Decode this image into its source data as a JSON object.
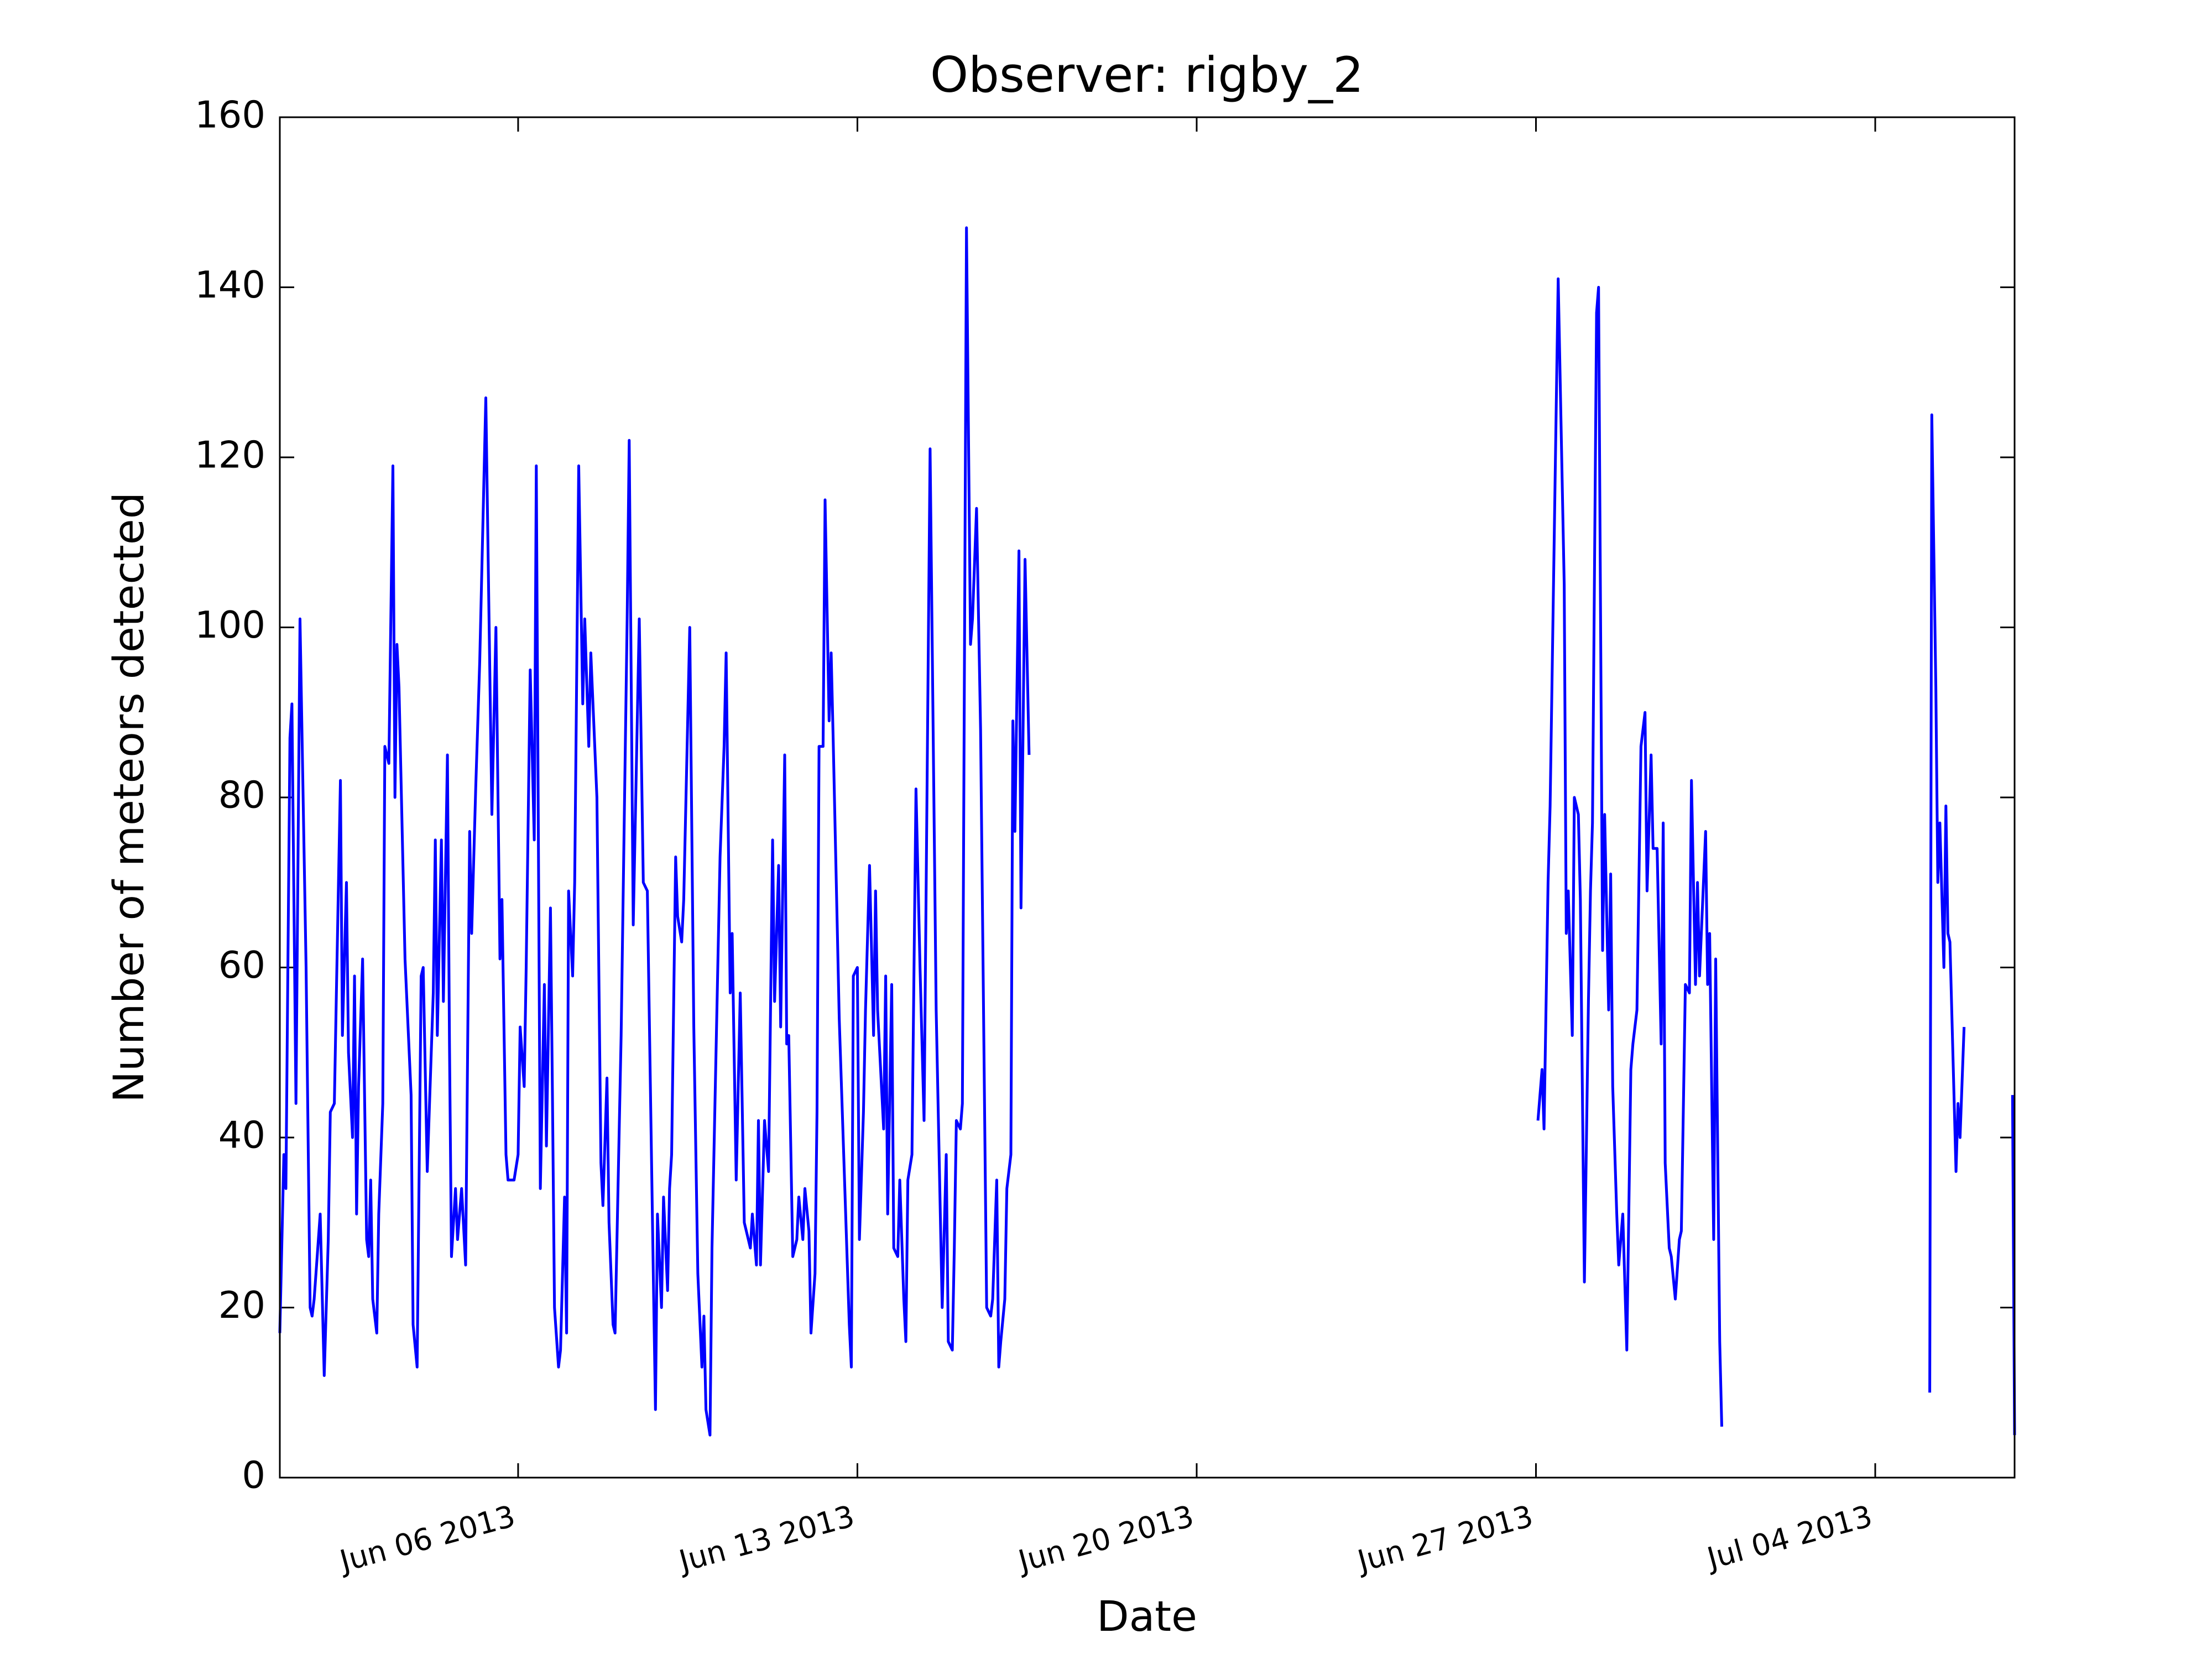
{
  "chart_data": {
    "type": "line",
    "title": "Observer: rigby_2",
    "x_label": "Date",
    "y_label": "Number of meteors detected",
    "color": "#0000ff",
    "xlim": [
      "2013-06-01T02:00",
      "2013-07-06T21:00"
    ],
    "xticks": [
      {
        "value": "2013-06-06",
        "label": "Jun 06 2013"
      },
      {
        "value": "2013-06-13",
        "label": "Jun 13 2013"
      },
      {
        "value": "2013-06-20",
        "label": "Jun 20 2013"
      },
      {
        "value": "2013-06-27",
        "label": "Jun 27 2013"
      },
      {
        "value": "2013-07-04",
        "label": "Jul 04 2013"
      }
    ],
    "ylim": [
      0,
      160
    ],
    "yticks": [
      0,
      20,
      40,
      60,
      80,
      100,
      120,
      140,
      160
    ],
    "x": [
      "2013-06-01T02:00",
      "2013-06-01T04:00",
      "2013-06-01T05:00",
      "2013-06-01T07:00",
      "2013-06-01T08:00",
      "2013-06-01T10:00",
      "2013-06-01T12:00",
      "2013-06-01T15:00",
      "2013-06-01T17:00",
      "2013-06-01T18:00",
      "2013-06-01T19:00",
      "2013-06-01T22:00",
      "2013-06-02T00:00",
      "2013-06-02T02:00",
      "2013-06-02T03:00",
      "2013-06-02T05:00",
      "2013-06-02T06:00",
      "2013-06-02T08:00",
      "2013-06-02T09:00",
      "2013-06-02T11:00",
      "2013-06-02T12:00",
      "2013-06-02T14:00",
      "2013-06-02T15:00",
      "2013-06-02T16:00",
      "2013-06-02T17:00",
      "2013-06-02T19:00",
      "2013-06-02T21:00",
      "2013-06-02T22:00",
      "2013-06-02T23:00",
      "2013-06-03T00:00",
      "2013-06-03T02:00",
      "2013-06-03T03:00",
      "2013-06-03T05:00",
      "2013-06-03T06:00",
      "2013-06-03T08:00",
      "2013-06-03T10:00",
      "2013-06-03T11:00",
      "2013-06-03T12:00",
      "2013-06-03T13:00",
      "2013-06-03T16:00",
      "2013-06-03T19:00",
      "2013-06-03T20:00",
      "2013-06-03T22:00",
      "2013-06-04T00:00",
      "2013-06-04T01:00",
      "2013-06-04T03:00",
      "2013-06-04T04:00",
      "2013-06-04T06:00",
      "2013-06-04T07:00",
      "2013-06-04T08:00",
      "2013-06-04T10:00",
      "2013-06-04T11:00",
      "2013-06-04T13:00",
      "2013-06-04T14:00",
      "2013-06-04T15:00",
      "2013-06-04T17:00",
      "2013-06-04T18:00",
      "2013-06-04T20:00",
      "2013-06-04T22:00",
      "2013-06-05T00:00",
      "2013-06-05T01:00",
      "2013-06-05T03:00",
      "2013-06-05T05:00",
      "2013-06-05T08:00",
      "2013-06-05T11:00",
      "2013-06-05T13:00",
      "2013-06-05T15:00",
      "2013-06-05T16:00",
      "2013-06-05T18:00",
      "2013-06-05T19:00",
      "2013-06-05T22:00",
      "2013-06-06T00:00",
      "2013-06-06T01:00",
      "2013-06-06T03:00",
      "2013-06-06T04:00",
      "2013-06-06T06:00",
      "2013-06-06T08:00",
      "2013-06-06T09:00",
      "2013-06-06T11:00",
      "2013-06-06T13:00",
      "2013-06-06T14:00",
      "2013-06-06T16:00",
      "2013-06-06T17:00",
      "2013-06-06T18:00",
      "2013-06-06T20:00",
      "2013-06-06T21:00",
      "2013-06-06T23:00",
      "2013-06-07T00:00",
      "2013-06-07T01:00",
      "2013-06-07T03:00",
      "2013-06-07T04:00",
      "2013-06-07T06:00",
      "2013-06-07T08:00",
      "2013-06-07T09:00",
      "2013-06-07T11:00",
      "2013-06-07T12:00",
      "2013-06-07T15:00",
      "2013-06-07T17:00",
      "2013-06-07T18:00",
      "2013-06-07T20:00",
      "2013-06-07T21:00",
      "2013-06-07T23:00",
      "2013-06-08T00:00",
      "2013-06-08T03:00",
      "2013-06-08T06:00",
      "2013-06-08T07:00",
      "2013-06-08T09:00",
      "2013-06-08T12:00",
      "2013-06-08T14:00",
      "2013-06-08T16:00",
      "2013-06-08T19:00",
      "2013-06-08T20:00",
      "2013-06-08T21:00",
      "2013-06-08T23:00",
      "2013-06-09T00:00",
      "2013-06-09T02:00",
      "2013-06-09T03:00",
      "2013-06-09T04:00",
      "2013-06-09T06:00",
      "2013-06-09T07:00",
      "2013-06-09T09:00",
      "2013-06-09T10:00",
      "2013-06-09T13:00",
      "2013-06-09T15:00",
      "2013-06-09T17:00",
      "2013-06-09T19:00",
      "2013-06-09T20:00",
      "2013-06-09T21:00",
      "2013-06-09T23:00",
      "2013-06-10T00:00",
      "2013-06-10T02:00",
      "2013-06-10T04:00",
      "2013-06-10T06:00",
      "2013-06-10T07:00",
      "2013-06-10T09:00",
      "2013-06-10T10:00",
      "2013-06-10T12:00",
      "2013-06-10T14:00",
      "2013-06-10T16:00",
      "2013-06-10T17:00",
      "2013-06-10T19:00",
      "2013-06-10T20:00",
      "2013-06-10T22:00",
      "2013-06-10T23:00",
      "2013-06-11T00:00",
      "2013-06-11T02:00",
      "2013-06-11T04:00",
      "2013-06-11T06:00",
      "2013-06-11T07:00",
      "2013-06-11T09:00",
      "2013-06-11T10:00",
      "2013-06-11T12:00",
      "2013-06-11T13:00",
      "2013-06-11T14:00",
      "2013-06-11T16:00",
      "2013-06-11T18:00",
      "2013-06-11T19:00",
      "2013-06-11T21:00",
      "2013-06-11T22:00",
      "2013-06-12T00:00",
      "2013-06-12T01:00",
      "2013-06-12T03:00",
      "2013-06-12T04:00",
      "2013-06-12T05:00",
      "2013-06-12T07:00",
      "2013-06-12T08:00",
      "2013-06-12T10:00",
      "2013-06-12T11:00",
      "2013-06-12T12:00",
      "2013-06-12T15:00",
      "2013-06-12T20:00",
      "2013-06-12T21:00",
      "2013-06-12T22:00",
      "2013-06-13T00:00",
      "2013-06-13T01:00",
      "2013-06-13T03:00",
      "2013-06-13T04:00",
      "2013-06-13T06:00",
      "2013-06-13T08:00",
      "2013-06-13T09:00",
      "2013-06-13T10:00",
      "2013-06-13T13:00",
      "2013-06-13T14:00",
      "2013-06-13T15:00",
      "2013-06-13T17:00",
      "2013-06-13T18:00",
      "2013-06-13T20:00",
      "2013-06-13T21:00",
      "2013-06-13T23:00",
      "2013-06-14T00:00",
      "2013-06-14T01:00",
      "2013-06-14T03:00",
      "2013-06-14T05:00",
      "2013-06-14T07:00",
      "2013-06-14T09:00",
      "2013-06-14T12:00",
      "2013-06-14T15:00",
      "2013-06-14T18:00",
      "2013-06-14T20:00",
      "2013-06-14T21:00",
      "2013-06-14T23:00",
      "2013-06-15T00:00",
      "2013-06-15T01:00",
      "2013-06-15T03:00",
      "2013-06-15T04:00",
      "2013-06-15T06:00",
      "2013-06-15T08:00",
      "2013-06-15T09:00",
      "2013-06-15T11:00",
      "2013-06-15T13:00",
      "2013-06-15T16:00",
      "2013-06-15T18:00",
      "2013-06-15T19:00",
      "2013-06-15T21:00",
      "2013-06-15T22:00",
      "2013-06-15T23:00",
      "2013-06-16T01:00",
      "2013-06-16T02:00",
      "2013-06-16T04:00",
      "2013-06-16T05:00",
      "2013-06-16T06:00",
      "2013-06-16T08:00",
      "2013-06-16T09:00",
      "2013-06-16T11:00",
      "2013-06-16T13:00",
      null,
      "2013-06-27T01:00",
      "2013-06-27T03:00",
      "2013-06-27T04:00",
      "2013-06-27T06:00",
      "2013-06-27T07:00",
      "2013-06-27T09:00",
      "2013-06-27T11:00",
      "2013-06-27T14:00",
      "2013-06-27T15:00",
      "2013-06-27T16:00",
      "2013-06-27T18:00",
      "2013-06-27T19:00",
      "2013-06-27T21:00",
      "2013-06-27T22:00",
      "2013-06-28T00:00",
      "2013-06-28T02:00",
      "2013-06-28T03:00",
      "2013-06-28T04:00",
      "2013-06-28T06:00",
      "2013-06-28T07:00",
      "2013-06-28T09:00",
      "2013-06-28T10:00",
      "2013-06-28T12:00",
      "2013-06-28T13:00",
      "2013-06-28T14:00",
      "2013-06-28T16:00",
      "2013-06-28T17:00",
      "2013-06-28T19:00",
      "2013-06-28T21:00",
      "2013-06-28T23:00",
      "2013-06-29T00:00",
      "2013-06-29T02:00",
      "2013-06-29T04:00",
      "2013-06-29T06:00",
      "2013-06-29T07:00",
      "2013-06-29T09:00",
      "2013-06-29T10:00",
      "2013-06-29T12:00",
      "2013-06-29T14:00",
      "2013-06-29T15:00",
      "2013-06-29T16:00",
      "2013-06-29T18:00",
      "2013-06-29T19:00",
      "2013-06-29T21:00",
      "2013-06-29T23:00",
      "2013-06-30T00:00",
      "2013-06-30T02:00",
      "2013-06-30T04:00",
      "2013-06-30T05:00",
      "2013-06-30T07:00",
      "2013-06-30T08:00",
      "2013-06-30T09:00",
      "2013-06-30T12:00",
      "2013-06-30T13:00",
      "2013-06-30T14:00",
      "2013-06-30T16:00",
      "2013-06-30T17:00",
      "2013-06-30T19:00",
      "2013-06-30T20:00",
      null,
      "2013-07-05T03:00",
      "2013-07-05T04:00",
      "2013-07-05T06:00",
      "2013-07-05T07:00",
      "2013-07-05T08:00",
      "2013-07-05T10:00",
      "2013-07-05T11:00",
      "2013-07-05T12:00",
      "2013-07-05T13:00",
      "2013-07-05T16:00",
      "2013-07-05T17:00",
      "2013-07-05T18:00",
      "2013-07-05T20:00",
      null,
      "2013-07-06T20:00",
      "2013-07-06T21:00"
    ],
    "values": [
      17,
      38,
      34,
      87,
      91,
      44,
      101,
      60,
      20,
      19,
      21,
      31,
      12,
      28,
      43,
      44,
      57,
      82,
      52,
      70,
      50,
      40,
      59,
      31,
      46,
      61,
      28,
      26,
      35,
      21,
      17,
      31,
      44,
      86,
      84,
      119,
      80,
      98,
      93,
      61,
      45,
      18,
      13,
      59,
      60,
      36,
      43,
      57,
      75,
      52,
      75,
      56,
      85,
      51,
      26,
      34,
      28,
      34,
      25,
      76,
      64,
      81,
      96,
      127,
      78,
      100,
      61,
      68,
      38,
      35,
      35,
      38,
      53,
      46,
      60,
      95,
      75,
      119,
      34,
      58,
      39,
      67,
      45,
      20,
      13,
      15,
      33,
      17,
      69,
      59,
      70,
      119,
      91,
      101,
      86,
      97,
      80,
      37,
      32,
      47,
      30,
      18,
      17,
      52,
      101,
      122,
      65,
      101,
      70,
      69,
      23,
      8,
      31,
      20,
      33,
      22,
      34,
      38,
      73,
      66,
      63,
      68,
      100,
      53,
      24,
      13,
      19,
      8,
      5,
      27,
      50,
      73,
      86,
      97,
      57,
      64,
      35,
      57,
      30,
      29,
      27,
      31,
      25,
      42,
      25,
      42,
      36,
      75,
      56,
      72,
      53,
      85,
      51,
      52,
      26,
      28,
      33,
      28,
      34,
      29,
      17,
      24,
      43,
      86,
      86,
      115,
      89,
      97,
      87,
      54,
      18,
      13,
      59,
      60,
      28,
      43,
      55,
      72,
      52,
      69,
      55,
      41,
      59,
      31,
      58,
      27,
      26,
      35,
      21,
      16,
      35,
      38,
      81,
      60,
      42,
      121,
      55,
      20,
      38,
      16,
      15,
      27,
      42,
      41,
      44,
      147,
      98,
      101,
      114,
      88,
      20,
      19,
      21,
      35,
      13,
      16,
      21,
      34,
      38,
      89,
      76,
      109,
      67,
      108,
      85,
      null,
      42,
      48,
      41,
      70,
      79,
      110,
      141,
      105,
      64,
      69,
      52,
      80,
      78,
      68,
      23,
      56,
      69,
      77,
      137,
      140,
      62,
      78,
      55,
      71,
      46,
      31,
      25,
      31,
      15,
      48,
      51,
      55,
      86,
      90,
      69,
      85,
      74,
      74,
      51,
      77,
      37,
      27,
      26,
      21,
      28,
      29,
      58,
      57,
      82,
      58,
      70,
      59,
      76,
      58,
      64,
      28,
      61,
      16,
      6,
      null,
      10,
      125,
      93,
      70,
      77,
      60,
      79,
      64,
      63,
      36,
      44,
      40,
      53,
      null,
      45,
      5
    ]
  }
}
